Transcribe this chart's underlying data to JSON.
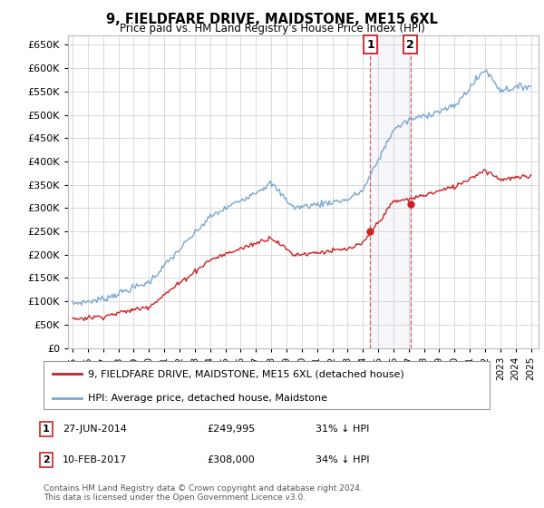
{
  "title": "9, FIELDFARE DRIVE, MAIDSTONE, ME15 6XL",
  "subtitle": "Price paid vs. HM Land Registry's House Price Index (HPI)",
  "ylim": [
    0,
    670000
  ],
  "yticks": [
    0,
    50000,
    100000,
    150000,
    200000,
    250000,
    300000,
    350000,
    400000,
    450000,
    500000,
    550000,
    600000,
    650000
  ],
  "hpi_color": "#7aa8d2",
  "price_color": "#cc2222",
  "background_color": "#ffffff",
  "grid_color": "#cccccc",
  "sale1_date": "27-JUN-2014",
  "sale1_price": "£249,995",
  "sale1_pct": "31% ↓ HPI",
  "sale2_date": "10-FEB-2017",
  "sale2_price": "£308,000",
  "sale2_pct": "34% ↓ HPI",
  "sale1_year": 2014.49,
  "sale1_value": 249995,
  "sale2_year": 2017.11,
  "sale2_value": 308000,
  "footer": "Contains HM Land Registry data © Crown copyright and database right 2024.\nThis data is licensed under the Open Government Licence v3.0.",
  "legend_label_price": "9, FIELDFARE DRIVE, MAIDSTONE, ME15 6XL (detached house)",
  "legend_label_hpi": "HPI: Average price, detached house, Maidstone"
}
